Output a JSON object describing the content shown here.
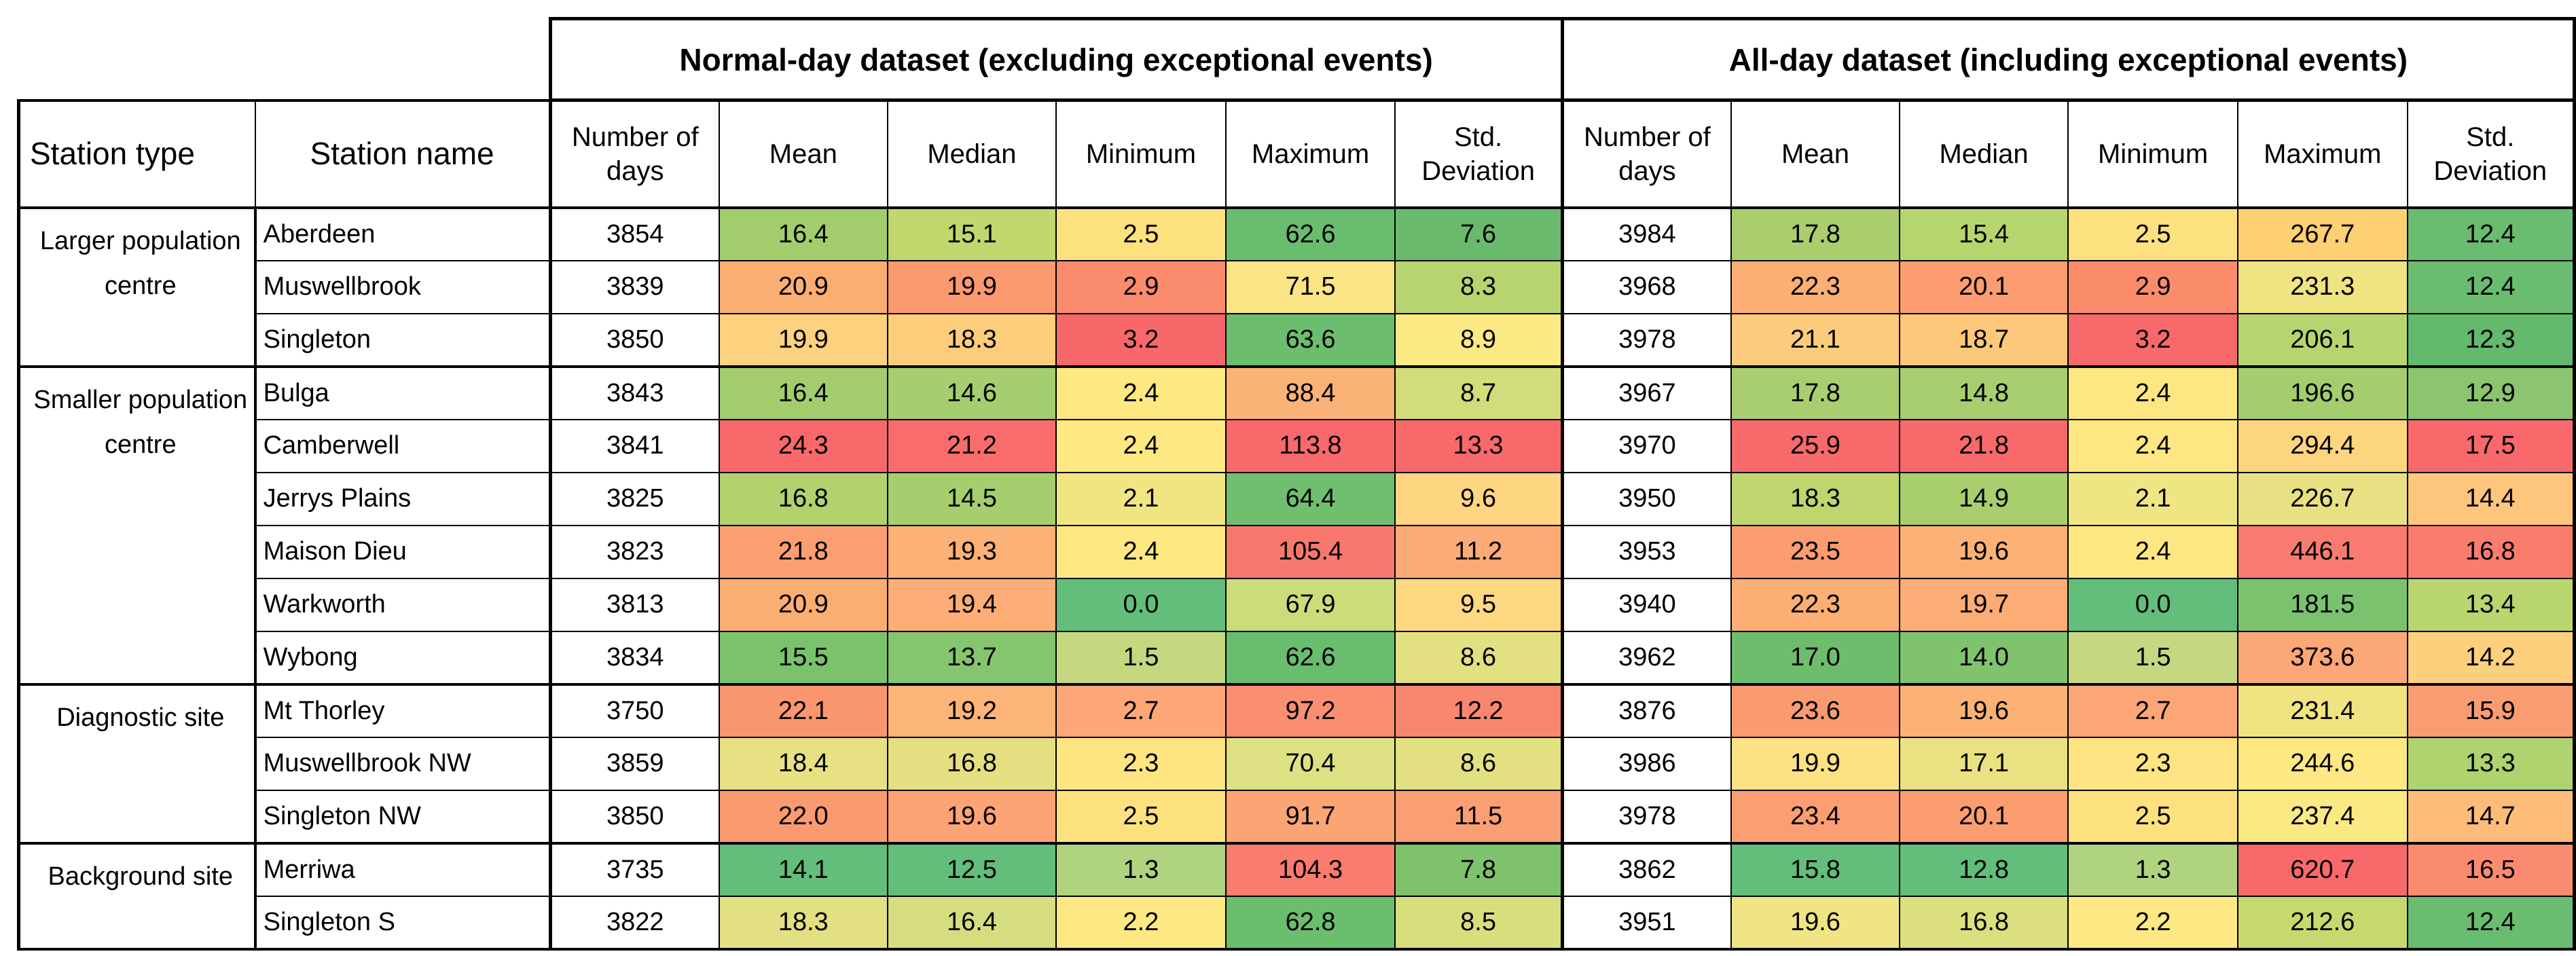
{
  "table": {
    "group_headers": {
      "normal": "Normal-day dataset (excluding exceptional events)",
      "all": "All-day dataset (including exceptional events)"
    },
    "column_headers": {
      "station_type": "Station type",
      "station_name": "Station name",
      "stats": [
        "Number of days",
        "Mean",
        "Median",
        "Minimum",
        "Maximum",
        "Std. Deviation"
      ]
    },
    "groups": [
      {
        "type": "Larger population centre",
        "rows": [
          {
            "name": "Aberdeen",
            "values": [
              "3854",
              "16.4",
              "15.1",
              "2.5",
              "62.6",
              "7.6",
              "3984",
              "17.8",
              "15.4",
              "2.5",
              "267.7",
              "12.4"
            ],
            "colors": [
              "#ffffff",
              "#a3cd6c",
              "#c1d76d",
              "#fee17f",
              "#69bd6f",
              "#6aba6e",
              "#ffffff",
              "#aace6e",
              "#b7d56d",
              "#fee17f",
              "#fdd073",
              "#69bc70"
            ]
          },
          {
            "name": "Muswellbrook",
            "values": [
              "3839",
              "20.9",
              "19.9",
              "2.9",
              "71.5",
              "8.3",
              "3968",
              "22.3",
              "20.1",
              "2.9",
              "231.3",
              "12.4"
            ],
            "colors": [
              "#ffffff",
              "#fbae72",
              "#fb9a6f",
              "#fa8b6c",
              "#fbe585",
              "#b8d46e",
              "#ffffff",
              "#fbaf74",
              "#fb9d70",
              "#fa8c6c",
              "#efe382",
              "#69bc70"
            ]
          },
          {
            "name": "Singleton",
            "values": [
              "3850",
              "19.9",
              "18.3",
              "3.2",
              "63.6",
              "8.9",
              "3978",
              "21.1",
              "18.7",
              "3.2",
              "206.1",
              "12.3"
            ],
            "colors": [
              "#ffffff",
              "#fdd27e",
              "#fdcd7c",
              "#f8686b",
              "#6cbe6e",
              "#fbea84",
              "#ffffff",
              "#fccc7c",
              "#fdc87a",
              "#f8696b",
              "#b7d56e",
              "#63ba6d"
            ]
          }
        ]
      },
      {
        "type": "Smaller population centre",
        "rows": [
          {
            "name": "Bulga",
            "values": [
              "3843",
              "16.4",
              "14.6",
              "2.4",
              "88.4",
              "8.7",
              "3967",
              "17.8",
              "14.8",
              "2.4",
              "196.6",
              "12.9"
            ],
            "colors": [
              "#ffffff",
              "#a3cd6c",
              "#a4ce6f",
              "#fee882",
              "#fbb277",
              "#d3dc7a",
              "#ffffff",
              "#a9ce6f",
              "#a8ce6f",
              "#fee782",
              "#a4cd6e",
              "#8bc570"
            ]
          },
          {
            "name": "Camberwell",
            "values": [
              "3841",
              "24.3",
              "21.2",
              "2.4",
              "113.8",
              "13.3",
              "3970",
              "25.9",
              "21.8",
              "2.4",
              "294.4",
              "17.5"
            ],
            "colors": [
              "#ffffff",
              "#f8696b",
              "#f86d6c",
              "#fee882",
              "#f8696b",
              "#f8696b",
              "#ffffff",
              "#f8696b",
              "#f8696b",
              "#fee782",
              "#fdd57e",
              "#f8696b"
            ]
          },
          {
            "name": "Jerrys Plains",
            "values": [
              "3825",
              "16.8",
              "14.5",
              "2.1",
              "64.4",
              "9.6",
              "3950",
              "18.3",
              "14.9",
              "2.1",
              "226.7",
              "14.4"
            ],
            "colors": [
              "#ffffff",
              "#b2d26e",
              "#a6ce6f",
              "#f1e582",
              "#6fbf6f",
              "#fed581",
              "#ffffff",
              "#bed66d",
              "#a9ce6e",
              "#f0e583",
              "#e8e183",
              "#fdc67c"
            ]
          },
          {
            "name": "Maison Dieu",
            "values": [
              "3823",
              "21.8",
              "19.3",
              "2.4",
              "105.4",
              "11.2",
              "3953",
              "23.5",
              "19.6",
              "2.4",
              "446.1",
              "16.8"
            ],
            "colors": [
              "#ffffff",
              "#fb9f72",
              "#fcb177",
              "#fee882",
              "#f9786e",
              "#fbab75",
              "#ffffff",
              "#fb9c71",
              "#fcb276",
              "#fee782",
              "#f97b6f",
              "#f97d6f"
            ]
          },
          {
            "name": "Warkworth",
            "values": [
              "3813",
              "20.9",
              "19.4",
              "0.0",
              "67.9",
              "9.5",
              "3940",
              "22.3",
              "19.7",
              "0.0",
              "181.5",
              "13.4"
            ],
            "colors": [
              "#ffffff",
              "#fbae72",
              "#fcae76",
              "#63be7b",
              "#cbdd79",
              "#fed881",
              "#ffffff",
              "#fbaf74",
              "#fcac75",
              "#63be7b",
              "#7bc26f",
              "#b9d66f"
            ]
          },
          {
            "name": "Wybong",
            "values": [
              "3834",
              "15.5",
              "13.7",
              "1.5",
              "62.6",
              "8.6",
              "3962",
              "17.0",
              "14.0",
              "1.5",
              "373.6",
              "14.2"
            ],
            "colors": [
              "#ffffff",
              "#7bc26c",
              "#86c56f",
              "#c5d880",
              "#69bd6f",
              "#e2e081",
              "#ffffff",
              "#6ebd6d",
              "#80c36f",
              "#c5d881",
              "#fba777",
              "#fdd07e"
            ]
          }
        ]
      },
      {
        "type": "Diagnostic site",
        "rows": [
          {
            "name": "Mt Thorley",
            "values": [
              "3750",
              "22.1",
              "19.2",
              "2.7",
              "97.2",
              "12.2",
              "3876",
              "23.6",
              "19.6",
              "2.7",
              "231.4",
              "15.9"
            ],
            "colors": [
              "#ffffff",
              "#fa966f",
              "#fcb479",
              "#fda678",
              "#fa8e71",
              "#f98770",
              "#ffffff",
              "#fa9a70",
              "#fcb276",
              "#fca577",
              "#efe382",
              "#fa9c72"
            ]
          },
          {
            "name": "Muswellbrook NW",
            "values": [
              "3859",
              "18.4",
              "16.8",
              "2.3",
              "70.4",
              "8.6",
              "3986",
              "19.9",
              "17.1",
              "2.3",
              "244.6",
              "13.3"
            ],
            "colors": [
              "#ffffff",
              "#e7e183",
              "#e4e082",
              "#fee582",
              "#dde083",
              "#e2e081",
              "#ffffff",
              "#fde283",
              "#eae182",
              "#fee482",
              "#fee883",
              "#aed36f"
            ]
          },
          {
            "name": "Singleton NW",
            "values": [
              "3850",
              "22.0",
              "19.6",
              "2.5",
              "91.7",
              "11.5",
              "3978",
              "23.4",
              "20.1",
              "2.5",
              "237.4",
              "14.7"
            ],
            "colors": [
              "#ffffff",
              "#fa9a71",
              "#fca475",
              "#fee17f",
              "#fba574",
              "#fa9f73",
              "#ffffff",
              "#fb9f72",
              "#fb9d70",
              "#fee17f",
              "#faea84",
              "#fdbc7a"
            ]
          }
        ]
      },
      {
        "type": "Background site",
        "rows": [
          {
            "name": "Merriwa",
            "values": [
              "3735",
              "14.1",
              "12.5",
              "1.3",
              "104.3",
              "7.8",
              "3862",
              "15.8",
              "12.8",
              "1.3",
              "620.7",
              "16.5"
            ],
            "colors": [
              "#ffffff",
              "#63be7b",
              "#63be7b",
              "#b0d380",
              "#f97c6f",
              "#7ec26e",
              "#ffffff",
              "#63be7b",
              "#63be7b",
              "#b0d380",
              "#f8696b",
              "#fa8b71"
            ]
          },
          {
            "name": "Singleton S",
            "values": [
              "3822",
              "18.3",
              "16.4",
              "2.2",
              "62.8",
              "8.5",
              "3951",
              "19.6",
              "16.8",
              "2.2",
              "212.6",
              "12.4"
            ],
            "colors": [
              "#ffffff",
              "#e3e083",
              "#d5dd80",
              "#fde883",
              "#6abe6e",
              "#d8de7c",
              "#ffffff",
              "#f0e484",
              "#dbdf7f",
              "#fde883",
              "#c6d96f",
              "#69bc70"
            ]
          }
        ]
      }
    ]
  }
}
